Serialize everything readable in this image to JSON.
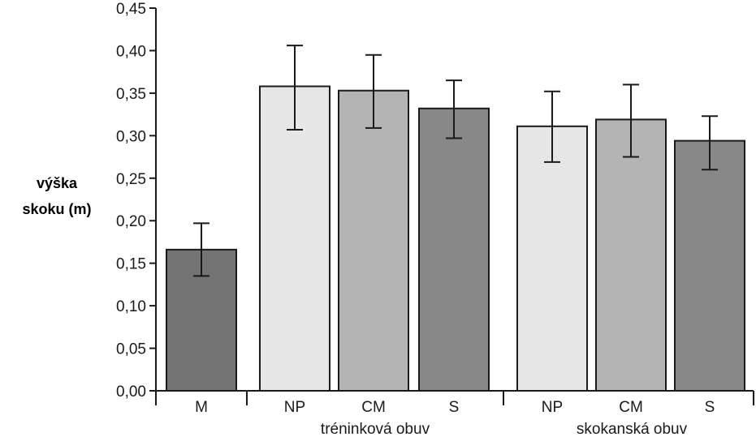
{
  "chart_data": {
    "type": "bar",
    "ylabel_lines": [
      "výška",
      "skoku (m)"
    ],
    "xlabel": "",
    "ylim": [
      0,
      0.45
    ],
    "yticks": [
      0,
      0.05,
      0.1,
      0.15,
      0.2,
      0.25,
      0.3,
      0.35,
      0.4,
      0.45
    ],
    "ytick_labels": [
      "0,00",
      "0,05",
      "0,10",
      "0,15",
      "0,20",
      "0,25",
      "0,30",
      "0,35",
      "0,40",
      "0,45"
    ],
    "grid": false,
    "categories": [
      "M",
      "NP",
      "CM",
      "S",
      "NP",
      "CM",
      "S"
    ],
    "values": [
      0.166,
      0.358,
      0.353,
      0.332,
      0.311,
      0.319,
      0.294
    ],
    "error_low": [
      0.135,
      0.307,
      0.309,
      0.297,
      0.269,
      0.275,
      0.26
    ],
    "error_high": [
      0.197,
      0.406,
      0.395,
      0.365,
      0.352,
      0.36,
      0.323
    ],
    "bar_colors": [
      "#747474",
      "#e6e6e6",
      "#b4b4b4",
      "#888888",
      "#e6e6e6",
      "#b4b4b4",
      "#888888"
    ],
    "groups": [
      {
        "label": "tréninková obuv",
        "categories": [
          "NP",
          "CM",
          "S"
        ]
      },
      {
        "label": "skokanská obuv",
        "categories": [
          "NP",
          "CM",
          "S"
        ]
      }
    ]
  }
}
